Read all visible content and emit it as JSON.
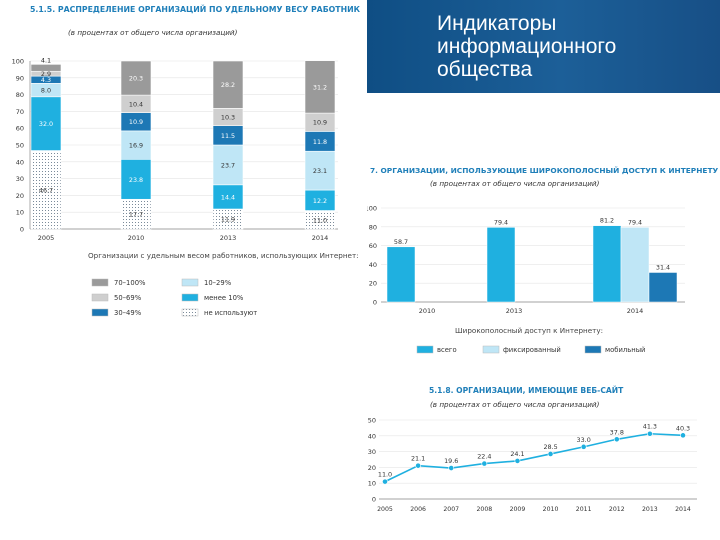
{
  "header": {
    "title": "Индикаторы\nинформационного\nобщества"
  },
  "chart_data": [
    {
      "type": "bar",
      "stacked": true,
      "title": "5.1.5. РАСПРЕДЕЛЕНИЕ ОРГАНИЗАЦИЙ ПО УДЕЛЬНОМУ ВЕСУ РАБОТНИКОВ, ИСПОЛЬЗУЮЩИХ ИНТЕРНЕТ",
      "subtitle": "(в процентах от общего числа организаций)",
      "categories": [
        "2005",
        "2010",
        "2013",
        "2014"
      ],
      "yticks": [
        "0",
        "10",
        "20",
        "30",
        "40",
        "50",
        "60",
        "70",
        "80",
        "90",
        "100"
      ],
      "ylim": [
        0,
        100
      ],
      "legend_title": "Организации с удельным весом работников, использующих Интернет:",
      "series": [
        {
          "name": "не используют",
          "color": "#ffffff",
          "values": [
            46.7,
            17.7,
            11.9,
            11.0
          ]
        },
        {
          "name": "менее 10%",
          "color": "#1fb0e0",
          "values": [
            32.0,
            23.8,
            14.4,
            12.2
          ]
        },
        {
          "name": "10–29%",
          "color": "#bfe6f6",
          "values": [
            8.0,
            16.9,
            23.7,
            23.1
          ]
        },
        {
          "name": "30–49%",
          "color": "#1d78b5",
          "values": [
            4.3,
            10.9,
            11.5,
            11.8
          ]
        },
        {
          "name": "50–69%",
          "color": "#cfcfcf",
          "values": [
            2.9,
            10.4,
            10.3,
            10.9
          ]
        },
        {
          "name": "70–100%",
          "color": "#9a9a9a",
          "values": [
            4.1,
            20.3,
            28.2,
            31.2
          ]
        }
      ],
      "labels": [
        [
          "46.7",
          "32.0",
          "8.0",
          "4.3",
          "2.9",
          "4.1"
        ],
        [
          "17.7",
          "23.8",
          "16.9",
          "10.9",
          "10.4",
          "20.3"
        ],
        [
          "11.9",
          "14.4",
          "23.7",
          "11.5",
          "10.3",
          "28.2"
        ],
        [
          "11.0",
          "12.2",
          "23.1",
          "11.8",
          "10.9",
          "31.2"
        ]
      ],
      "legend_order": [
        5,
        2,
        4,
        1,
        3,
        0
      ]
    },
    {
      "type": "bar",
      "title": "7. ОРГАНИЗАЦИИ, ИСПОЛЬЗУЮЩИЕ ШИРОКОПОЛОСНЫЙ ДОСТУП К ИНТЕРНЕТУ",
      "subtitle": "(в процентах от общего числа организаций)",
      "categories": [
        "2010",
        "2013",
        "2014"
      ],
      "yticks": [
        "0",
        "20",
        "40",
        "60",
        "80",
        "100"
      ],
      "ylim": [
        0,
        100
      ],
      "legend_title": "Широкополосный доступ к Интернету:",
      "series": [
        {
          "name": "всего",
          "color": "#1fb0e0",
          "values": [
            58.7,
            79.4,
            81.2
          ]
        },
        {
          "name": "фиксированный",
          "color": "#bfe6f6",
          "values": [
            null,
            null,
            79.4
          ]
        },
        {
          "name": "мобильный",
          "color": "#1d78b5",
          "values": [
            null,
            null,
            31.4
          ]
        }
      ],
      "labels": [
        [
          "58.7",
          null,
          null
        ],
        [
          "79.4",
          null,
          null
        ],
        [
          "81.2",
          "79.4",
          "31.4"
        ]
      ]
    },
    {
      "type": "line",
      "title": "5.1.8. ОРГАНИЗАЦИИ, ИМЕЮЩИЕ ВЕБ-САЙТ",
      "subtitle": "(в процентах от общего числа организаций)",
      "x": [
        "2005",
        "2006",
        "2007",
        "2008",
        "2009",
        "2010",
        "2011",
        "2012",
        "2013",
        "2014"
      ],
      "y": [
        11.0,
        21.1,
        19.6,
        22.4,
        24.1,
        28.5,
        33.0,
        37.8,
        41.3,
        40.3
      ],
      "labels": [
        "11.0",
        "21.1",
        "19.6",
        "22.4",
        "24.1",
        "28.5",
        "33.0",
        "37.8",
        "41.3",
        "40.3"
      ],
      "yticks": [
        "0",
        "10",
        "20",
        "30",
        "40",
        "50"
      ],
      "ylim": [
        0,
        50
      ],
      "color": "#1fb0e0"
    }
  ]
}
